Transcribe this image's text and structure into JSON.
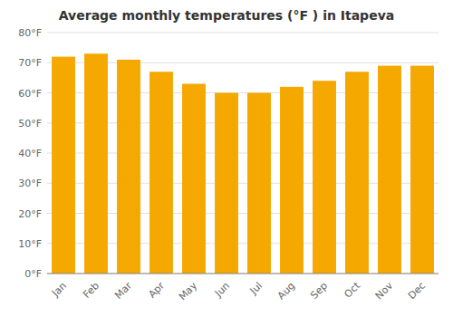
{
  "chart_data": {
    "type": "bar",
    "title": "Average monthly temperatures (°F ) in Itapeva",
    "categories": [
      "Jan",
      "Feb",
      "Mar",
      "Apr",
      "May",
      "Jun",
      "Jul",
      "Aug",
      "Sep",
      "Oct",
      "Nov",
      "Dec"
    ],
    "values": [
      72,
      73,
      71,
      67,
      63,
      60,
      60,
      62,
      64,
      67,
      69,
      69
    ],
    "color": "#F5A800",
    "ylim": [
      0,
      80
    ],
    "yticks": [
      {
        "value": 0,
        "label": "0°F"
      },
      {
        "value": 10,
        "label": "10°F"
      },
      {
        "value": 20,
        "label": "20°F"
      },
      {
        "value": 30,
        "label": "30°F"
      },
      {
        "value": 40,
        "label": "40°F"
      },
      {
        "value": 50,
        "label": "50°F"
      },
      {
        "value": 60,
        "label": "60°F"
      },
      {
        "value": 70,
        "label": "70°F"
      },
      {
        "value": 80,
        "label": "80°F"
      }
    ],
    "grid": true
  }
}
